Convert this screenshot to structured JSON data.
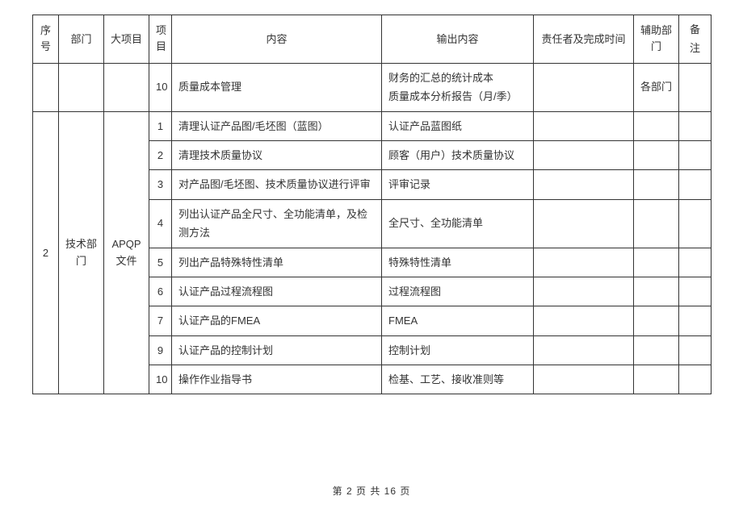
{
  "columns": {
    "seq": "序号",
    "dept": "部门",
    "major": "大项目",
    "item": "项目",
    "content": "内容",
    "output": "输出内容",
    "resp": "责任者及完成时间",
    "aux": "辅助部门",
    "remark": "备注"
  },
  "row_prev": {
    "item": "10",
    "content": "质量成本管理",
    "output_line1": "财务的汇总的统计成本",
    "output_line2": "质量成本分析报告（月/季）",
    "aux": "各部门"
  },
  "group2": {
    "seq": "2",
    "dept": "技术部门",
    "major": "APQP文件",
    "rows": [
      {
        "item": "1",
        "content": "清理认证产品图/毛坯图（蓝图）",
        "output": "认证产品蓝图纸"
      },
      {
        "item": "2",
        "content": "清理技术质量协议",
        "output": "顾客（用户）技术质量协议"
      },
      {
        "item": "3",
        "content": "对产品图/毛坯图、技术质量协议进行评审",
        "output": "评审记录"
      },
      {
        "item": "4",
        "content": "列出认证产品全尺寸、全功能清单，及检测方法",
        "output": "全尺寸、全功能清单"
      },
      {
        "item": "5",
        "content": "列出产品特殊特性清单",
        "output": "特殊特性清单"
      },
      {
        "item": "6",
        "content": "认证产品过程流程图",
        "output": "过程流程图"
      },
      {
        "item": "7",
        "content": "认证产品的FMEA",
        "output": "FMEA"
      },
      {
        "item": "9",
        "content": "认证产品的控制计划",
        "output": "控制计划"
      },
      {
        "item": "10",
        "content": "操作作业指导书",
        "output": "检基、工艺、接收准则等"
      }
    ]
  },
  "footer": "第 2 页 共 16 页"
}
